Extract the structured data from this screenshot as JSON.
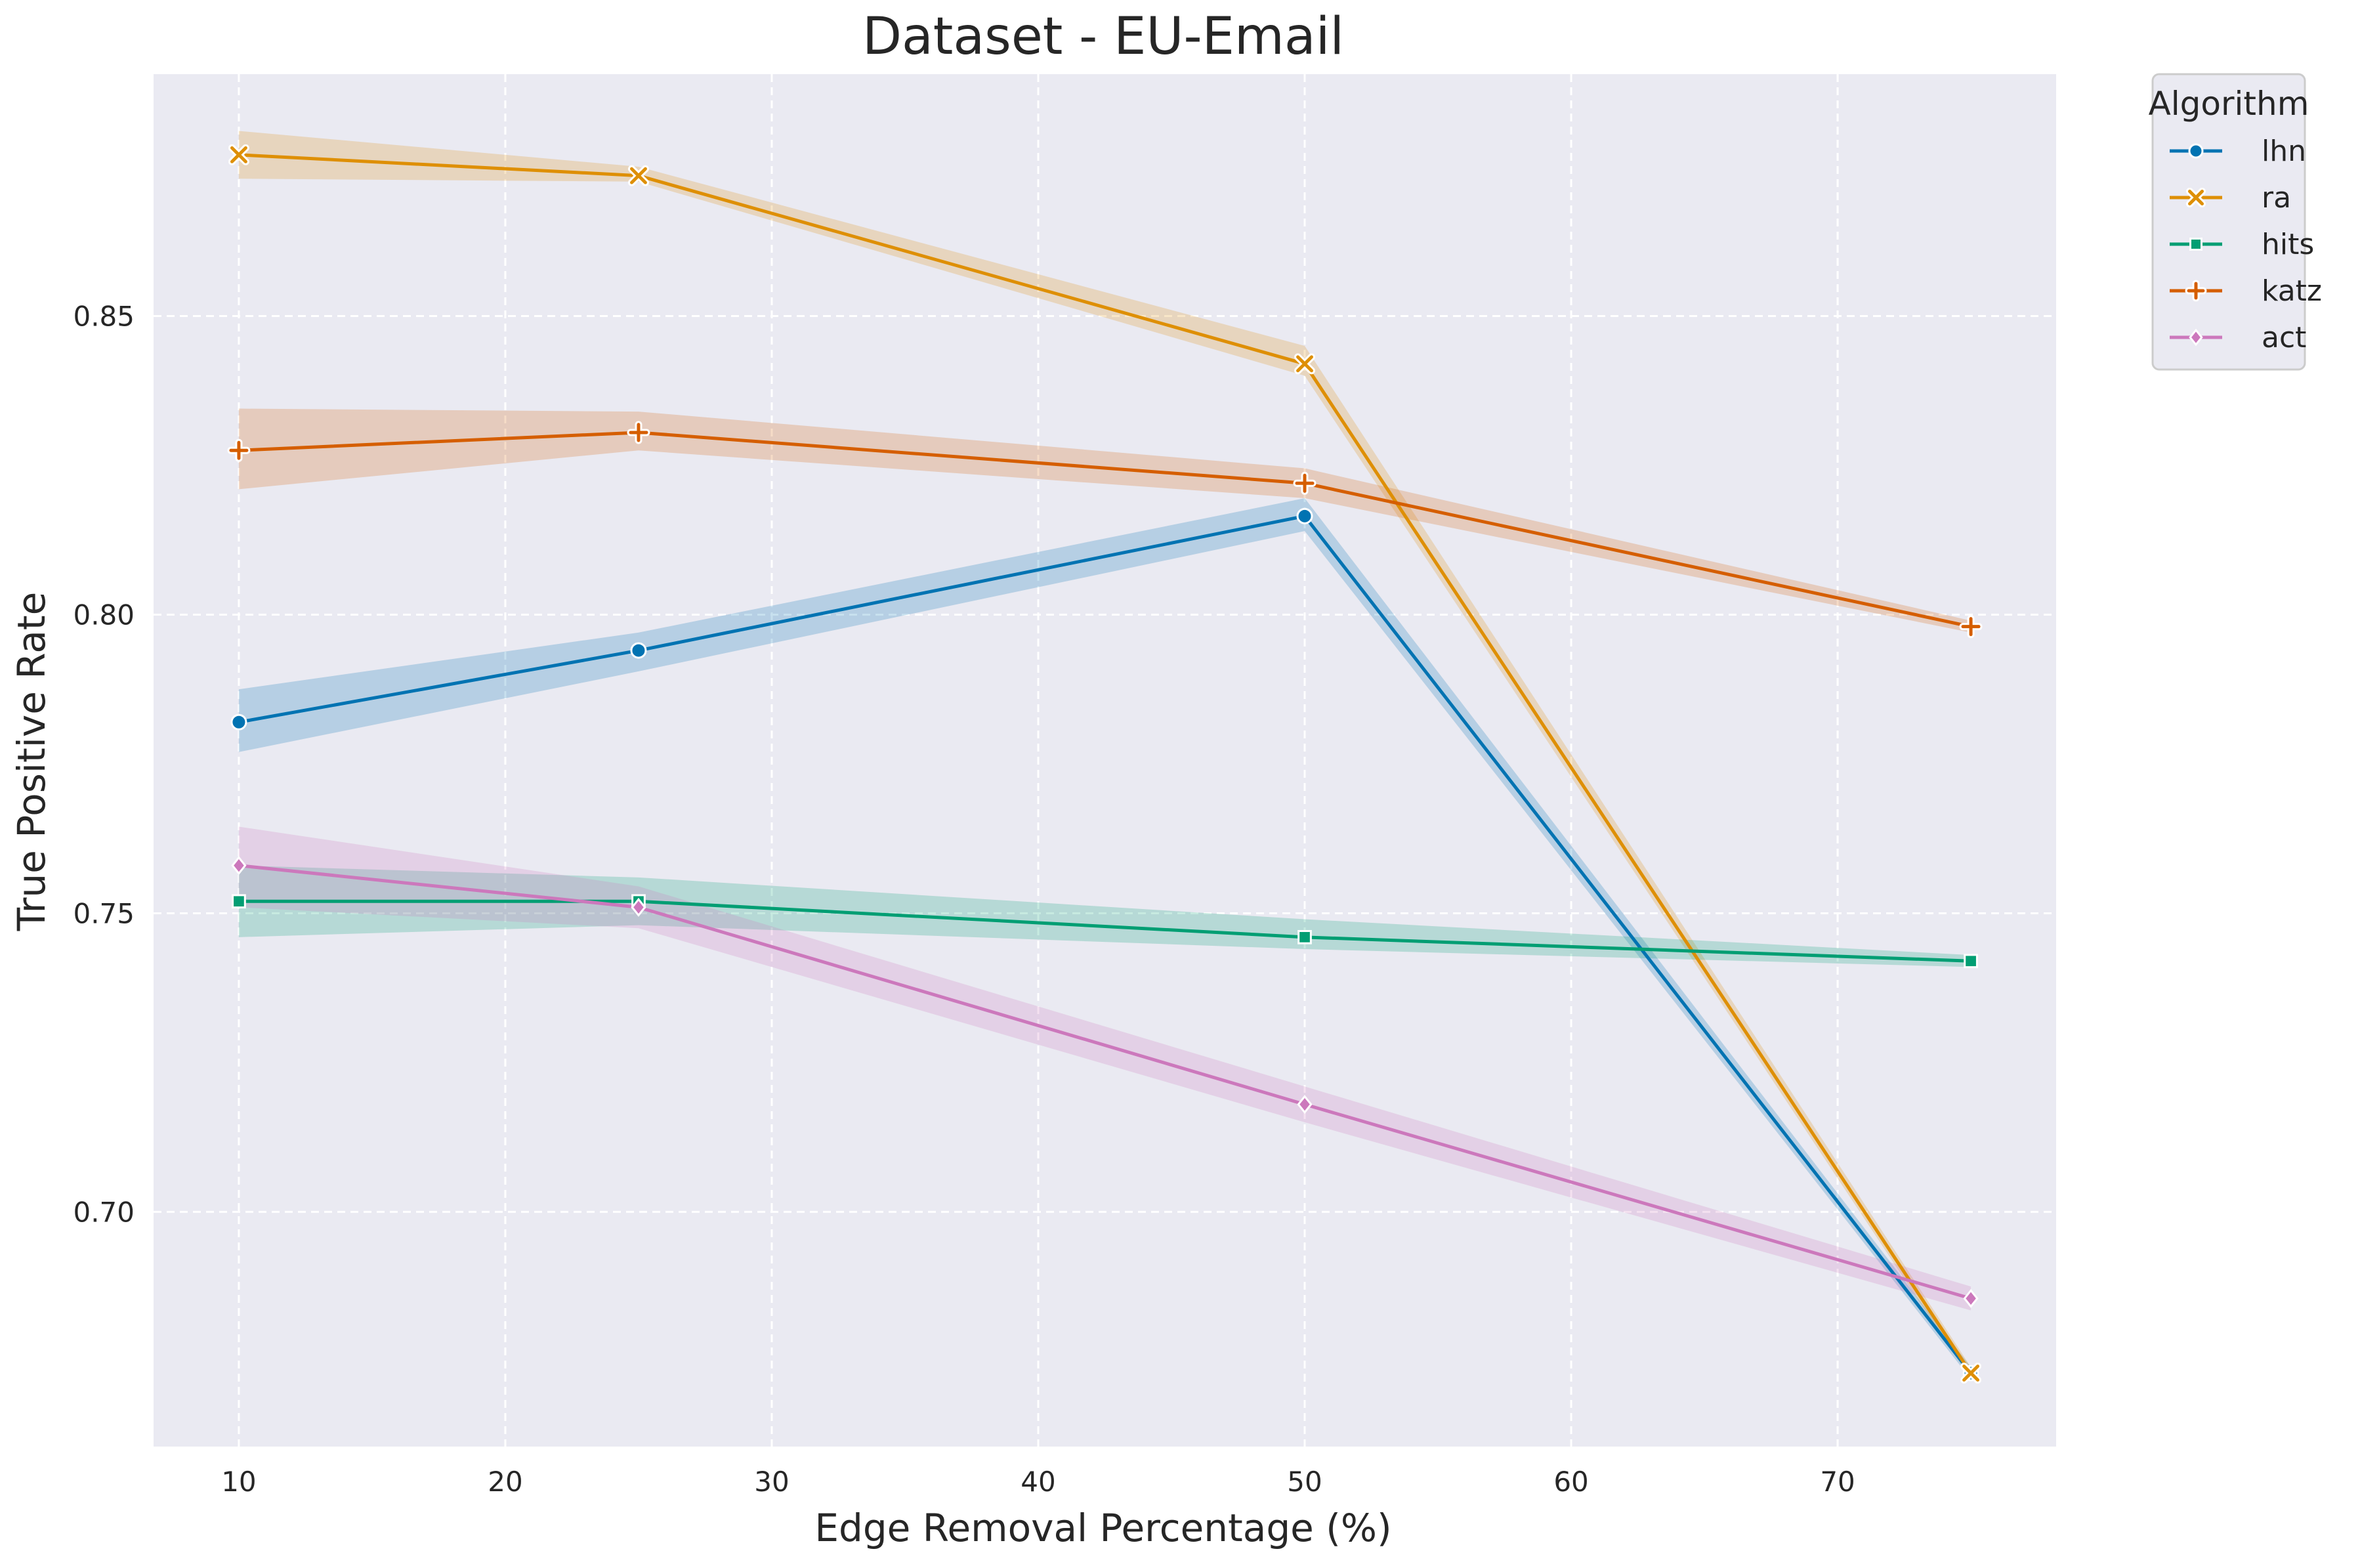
{
  "chart_data": {
    "type": "line",
    "title": "Dataset - EU-Email",
    "xlabel": "Edge Removal Percentage (%)",
    "ylabel": "True Positive Rate",
    "xlim": [
      6.8,
      78.2
    ],
    "ylim": [
      0.6607,
      0.8905
    ],
    "x_ticks": [
      10,
      20,
      30,
      40,
      50,
      60,
      70
    ],
    "x_tick_labels": [
      "10",
      "20",
      "30",
      "40",
      "50",
      "60",
      "70"
    ],
    "y_ticks": [
      0.7,
      0.75,
      0.8,
      0.85
    ],
    "y_tick_labels": [
      "0.70",
      "0.75",
      "0.80",
      "0.85"
    ],
    "grid": true,
    "background": "#eaeaf2",
    "legend": {
      "title": "Algorithm",
      "placement": "outside-top-right"
    },
    "x": [
      10,
      25,
      50,
      75
    ],
    "series": [
      {
        "name": "lhn",
        "color": "#0173b2",
        "marker": "circle",
        "values": [
          0.782,
          0.794,
          0.8165,
          0.673
        ],
        "lower": [
          0.777,
          0.7905,
          0.814,
          0.672
        ],
        "upper": [
          0.7875,
          0.797,
          0.8195,
          0.674
        ]
      },
      {
        "name": "ra",
        "color": "#de8f05",
        "marker": "x",
        "values": [
          0.877,
          0.8735,
          0.842,
          0.673
        ],
        "lower": [
          0.873,
          0.8725,
          0.84,
          0.672
        ],
        "upper": [
          0.881,
          0.875,
          0.845,
          0.674
        ]
      },
      {
        "name": "hits",
        "color": "#029e73",
        "marker": "square",
        "values": [
          0.752,
          0.752,
          0.746,
          0.742
        ],
        "lower": [
          0.746,
          0.748,
          0.744,
          0.741
        ],
        "upper": [
          0.758,
          0.756,
          0.749,
          0.743
        ]
      },
      {
        "name": "katz",
        "color": "#d55e00",
        "marker": "plus",
        "values": [
          0.8275,
          0.8305,
          0.822,
          0.798
        ],
        "lower": [
          0.821,
          0.8275,
          0.8195,
          0.797
        ],
        "upper": [
          0.8345,
          0.834,
          0.8245,
          0.799
        ]
      },
      {
        "name": "act",
        "color": "#cc78bc",
        "marker": "diamond",
        "values": [
          0.758,
          0.751,
          0.718,
          0.6855
        ],
        "lower": [
          0.751,
          0.7475,
          0.715,
          0.6835
        ],
        "upper": [
          0.7645,
          0.7545,
          0.721,
          0.6875
        ]
      }
    ]
  }
}
